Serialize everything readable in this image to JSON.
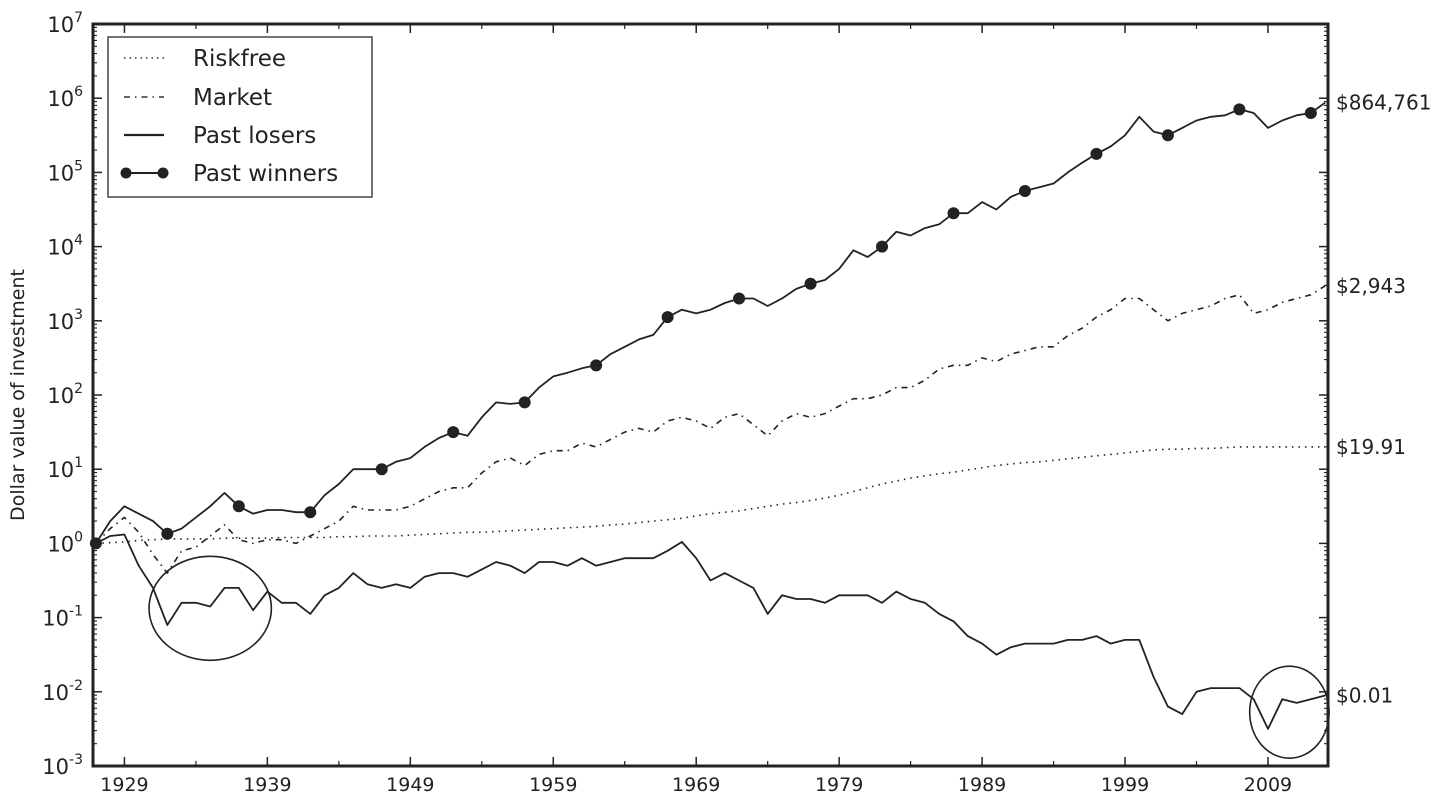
{
  "chart_data": {
    "type": "line",
    "title": "",
    "xlabel": "",
    "ylabel": "Dollar value of investment",
    "yscale": "log",
    "ylim": [
      0.001,
      10000000
    ],
    "xlim": [
      1926.8,
      2013.2
    ],
    "x_ticks": [
      1929,
      1939,
      1949,
      1959,
      1969,
      1979,
      1989,
      1999,
      2009
    ],
    "y_tick_exponents": [
      -3,
      -2,
      -1,
      0,
      1,
      2,
      3,
      4,
      5,
      6,
      7
    ],
    "y_tick_base": "10",
    "grid": false,
    "legend_position": "top-left",
    "x_years": [
      1927,
      1928,
      1929,
      1930,
      1931,
      1932,
      1933,
      1934,
      1935,
      1936,
      1937,
      1938,
      1939,
      1940,
      1941,
      1942,
      1943,
      1944,
      1945,
      1946,
      1947,
      1948,
      1949,
      1950,
      1951,
      1952,
      1953,
      1954,
      1955,
      1956,
      1957,
      1958,
      1959,
      1960,
      1961,
      1962,
      1963,
      1964,
      1965,
      1966,
      1967,
      1968,
      1969,
      1970,
      1971,
      1972,
      1973,
      1974,
      1975,
      1976,
      1977,
      1978,
      1979,
      1980,
      1981,
      1982,
      1983,
      1984,
      1985,
      1986,
      1987,
      1988,
      1989,
      1990,
      1991,
      1992,
      1993,
      1994,
      1995,
      1996,
      1997,
      1998,
      1999,
      2000,
      2001,
      2002,
      2003,
      2004,
      2005,
      2006,
      2007,
      2008,
      2009,
      2010,
      2011,
      2012,
      2013
    ],
    "value_encoding": "log10 of dollar value",
    "series": [
      {
        "name": "Riskfree",
        "style": "dotted",
        "end_label": "$19.91",
        "log10_values": [
          0,
          0.01,
          0.02,
          0.04,
          0.05,
          0.06,
          0.06,
          0.06,
          0.06,
          0.07,
          0.07,
          0.07,
          0.07,
          0.08,
          0.08,
          0.08,
          0.08,
          0.09,
          0.09,
          0.1,
          0.1,
          0.1,
          0.11,
          0.12,
          0.13,
          0.14,
          0.15,
          0.15,
          0.16,
          0.17,
          0.18,
          0.19,
          0.2,
          0.21,
          0.22,
          0.23,
          0.25,
          0.26,
          0.28,
          0.3,
          0.32,
          0.34,
          0.37,
          0.4,
          0.42,
          0.44,
          0.47,
          0.5,
          0.53,
          0.55,
          0.58,
          0.61,
          0.65,
          0.7,
          0.75,
          0.8,
          0.84,
          0.88,
          0.91,
          0.94,
          0.96,
          0.99,
          1.02,
          1.05,
          1.07,
          1.09,
          1.1,
          1.12,
          1.14,
          1.16,
          1.18,
          1.2,
          1.22,
          1.24,
          1.26,
          1.27,
          1.27,
          1.28,
          1.28,
          1.29,
          1.3,
          1.3,
          1.3,
          1.3,
          1.3,
          1.3,
          1.3
        ]
      },
      {
        "name": "Market",
        "style": "dashdot",
        "end_label": "$2,943",
        "log10_values": [
          0,
          0.2,
          0.35,
          0.15,
          -0.15,
          -0.4,
          -0.1,
          -0.05,
          0.1,
          0.25,
          0.05,
          0,
          0.05,
          0.05,
          0,
          0.1,
          0.2,
          0.3,
          0.5,
          0.45,
          0.45,
          0.45,
          0.5,
          0.6,
          0.7,
          0.75,
          0.75,
          0.95,
          1.1,
          1.15,
          1.05,
          1.2,
          1.25,
          1.25,
          1.35,
          1.3,
          1.4,
          1.5,
          1.55,
          1.5,
          1.65,
          1.7,
          1.65,
          1.55,
          1.7,
          1.75,
          1.6,
          1.45,
          1.65,
          1.75,
          1.7,
          1.75,
          1.85,
          1.95,
          1.95,
          2.0,
          2.1,
          2.1,
          2.2,
          2.35,
          2.4,
          2.4,
          2.5,
          2.45,
          2.55,
          2.6,
          2.65,
          2.65,
          2.8,
          2.9,
          3.05,
          3.15,
          3.3,
          3.3,
          3.15,
          3.0,
          3.1,
          3.15,
          3.2,
          3.3,
          3.35,
          3.1,
          3.15,
          3.25,
          3.3,
          3.35,
          3.47
        ]
      },
      {
        "name": "Past losers",
        "style": "solid",
        "end_label": "$0.01",
        "log10_values": [
          0,
          0.1,
          0.12,
          -0.3,
          -0.6,
          -1.1,
          -0.8,
          -0.8,
          -0.85,
          -0.6,
          -0.6,
          -0.9,
          -0.65,
          -0.8,
          -0.8,
          -0.95,
          -0.7,
          -0.6,
          -0.4,
          -0.55,
          -0.6,
          -0.55,
          -0.6,
          -0.45,
          -0.4,
          -0.4,
          -0.45,
          -0.35,
          -0.25,
          -0.3,
          -0.4,
          -0.25,
          -0.25,
          -0.3,
          -0.2,
          -0.3,
          -0.25,
          -0.2,
          -0.2,
          -0.2,
          -0.1,
          0.02,
          -0.2,
          -0.5,
          -0.4,
          -0.5,
          -0.6,
          -0.95,
          -0.7,
          -0.75,
          -0.75,
          -0.8,
          -0.7,
          -0.7,
          -0.7,
          -0.8,
          -0.65,
          -0.75,
          -0.8,
          -0.95,
          -1.05,
          -1.25,
          -1.35,
          -1.5,
          -1.4,
          -1.35,
          -1.35,
          -1.35,
          -1.3,
          -1.3,
          -1.25,
          -1.35,
          -1.3,
          -1.3,
          -1.8,
          -2.2,
          -2.3,
          -2.0,
          -1.95,
          -1.95,
          -1.95,
          -2.1,
          -2.5,
          -2.1,
          -2.15,
          -2.1,
          -2.05
        ]
      },
      {
        "name": "Past winners",
        "style": "solid-with-markers",
        "end_label": "$864,761",
        "marker_every_years": 5,
        "log10_values": [
          0,
          0.3,
          0.5,
          0.4,
          0.3,
          0.13,
          0.2,
          0.35,
          0.5,
          0.68,
          0.5,
          0.4,
          0.45,
          0.45,
          0.42,
          0.42,
          0.65,
          0.8,
          1.0,
          1.0,
          1.0,
          1.1,
          1.15,
          1.3,
          1.42,
          1.5,
          1.45,
          1.7,
          1.9,
          1.88,
          1.9,
          2.1,
          2.25,
          2.3,
          2.36,
          2.4,
          2.55,
          2.65,
          2.75,
          2.81,
          3.05,
          3.15,
          3.1,
          3.15,
          3.24,
          3.3,
          3.3,
          3.2,
          3.3,
          3.43,
          3.5,
          3.55,
          3.7,
          3.95,
          3.86,
          4.0,
          4.2,
          4.15,
          4.25,
          4.3,
          4.45,
          4.45,
          4.6,
          4.5,
          4.67,
          4.75,
          4.8,
          4.85,
          5.0,
          5.13,
          5.25,
          5.35,
          5.5,
          5.75,
          5.55,
          5.5,
          5.6,
          5.7,
          5.75,
          5.77,
          5.85,
          5.8,
          5.6,
          5.7,
          5.77,
          5.8,
          5.94
        ]
      }
    ],
    "annotations": [
      {
        "type": "ellipse",
        "series": "Past losers",
        "around_years": [
          1931,
          1939
        ]
      },
      {
        "type": "ellipse",
        "series": "Past losers",
        "around_years": [
          2008,
          2013
        ]
      }
    ]
  }
}
